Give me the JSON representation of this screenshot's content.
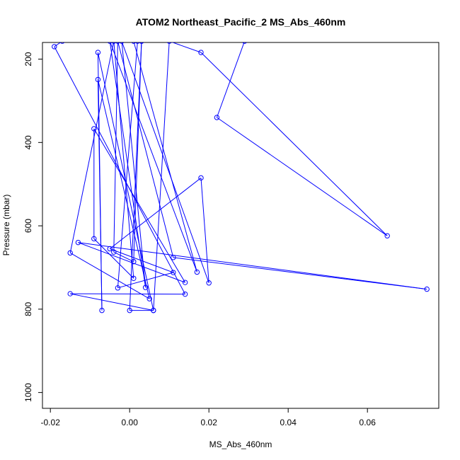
{
  "chart_data": {
    "type": "line",
    "title": "ATOM2 Northeast_Pacific_2 MS_Abs_460nm",
    "xlabel": "MS_Abs_460nm",
    "ylabel": "Pressure (mbar)",
    "xlim": [
      -0.022,
      0.078
    ],
    "ylim": [
      1038,
      160
    ],
    "y_inverted": true,
    "grid": false,
    "legend": "none",
    "xticks": [
      -0.02,
      0.0,
      0.02,
      0.04,
      0.06
    ],
    "xtick_labels": [
      "-0.02",
      "0.00",
      "0.02",
      "0.04",
      "0.06"
    ],
    "yticks": [
      200,
      400,
      600,
      800,
      1000
    ],
    "ytick_labels": [
      "200",
      "400",
      "600",
      "800",
      "1000"
    ],
    "series": [
      {
        "color": "#0000ff",
        "marker": "open-circle",
        "points": [
          {
            "x": -0.017,
            "y": 157
          },
          {
            "x": -0.019,
            "y": 170
          },
          {
            "x": 0.014,
            "y": 764
          },
          {
            "x": -0.015,
            "y": 763
          },
          {
            "x": 0.006,
            "y": 803
          },
          {
            "x": -0.008,
            "y": 184
          },
          {
            "x": -0.007,
            "y": 803
          },
          {
            "x": -0.008,
            "y": 249
          },
          {
            "x": 0.005,
            "y": 775
          },
          {
            "x": -0.015,
            "y": 665
          },
          {
            "x": -0.004,
            "y": 157
          },
          {
            "x": 0.001,
            "y": 726
          },
          {
            "x": -0.009,
            "y": 631
          },
          {
            "x": -0.009,
            "y": 367
          },
          {
            "x": 0.014,
            "y": 736
          },
          {
            "x": -0.013,
            "y": 640
          },
          {
            "x": 0.075,
            "y": 752
          },
          {
            "x": 0.011,
            "y": 676
          },
          {
            "x": -0.003,
            "y": 157
          },
          {
            "x": -0.004,
            "y": 663
          },
          {
            "x": 0.001,
            "y": 686
          },
          {
            "x": 0.003,
            "y": 157
          },
          {
            "x": 0.001,
            "y": 157
          },
          {
            "x": 0.017,
            "y": 711
          },
          {
            "x": -0.005,
            "y": 157
          },
          {
            "x": 0.004,
            "y": 748
          },
          {
            "x": -0.002,
            "y": 157
          },
          {
            "x": 0.02,
            "y": 737
          },
          {
            "x": 0.018,
            "y": 485
          },
          {
            "x": -0.005,
            "y": 655
          },
          {
            "x": 0.011,
            "y": 712
          },
          {
            "x": -0.003,
            "y": 749
          },
          {
            "x": 0.002,
            "y": 157
          },
          {
            "x": 0.003,
            "y": 157
          },
          {
            "x": 0.0,
            "y": 803
          },
          {
            "x": 0.006,
            "y": 803
          },
          {
            "x": 0.01,
            "y": 157
          },
          {
            "x": 0.018,
            "y": 184
          },
          {
            "x": 0.065,
            "y": 624
          },
          {
            "x": 0.022,
            "y": 340
          },
          {
            "x": 0.029,
            "y": 157
          }
        ]
      }
    ]
  }
}
